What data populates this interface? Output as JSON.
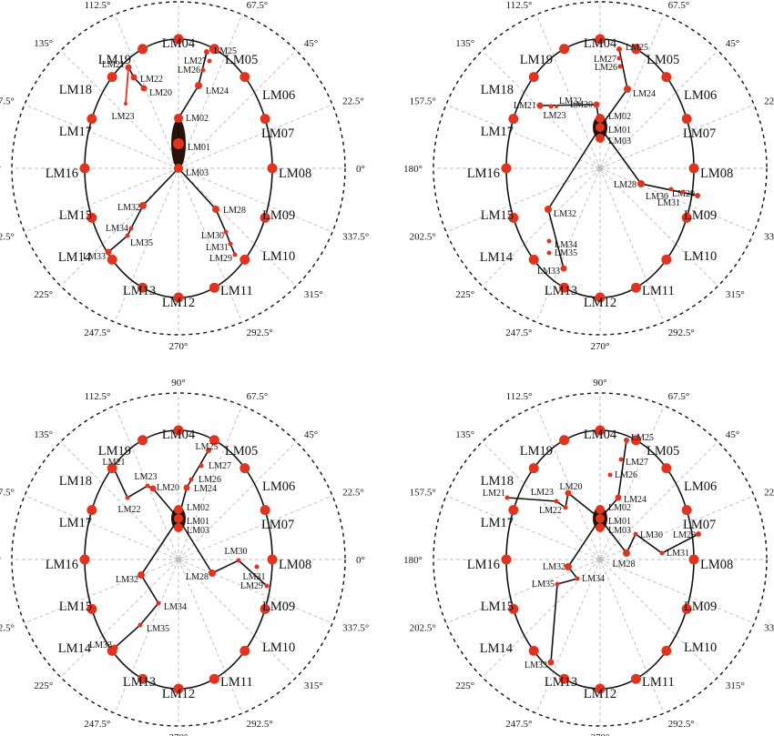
{
  "angle_labels": [
    "0°",
    "22.5°",
    "45°",
    "67.5°",
    "90°",
    "112.5°",
    "135°",
    "157.5°",
    "180°",
    "202.5°",
    "225°",
    "247.5°",
    "270°",
    "292.5°",
    "315°",
    "337.5°"
  ],
  "outer_labels": [
    "LM08",
    "LM07",
    "LM06",
    "LM05",
    "LM04",
    "LM19",
    "LM18",
    "LM17",
    "LM16",
    "LM15",
    "LM14",
    "LM13",
    "LM12",
    "LM11",
    "LM10",
    "LM09"
  ],
  "colors": {
    "node": "#e1341e",
    "line": "#111111",
    "grid": "#bbbbbb",
    "core": "#2a1208",
    "ring": "#111111"
  },
  "panels": [
    {
      "id": "top-left",
      "inner_labels": [
        "LM01",
        "LM02",
        "LM03",
        "LM20",
        "LM21",
        "LM22",
        "LM23",
        "LM24",
        "LM25",
        "LM26",
        "LM27",
        "LM28",
        "LM29",
        "LM30",
        "LM31",
        "LM32",
        "LM33",
        "LM34",
        "LM35"
      ],
      "red_segment": [
        "LM23",
        "LM21"
      ]
    },
    {
      "id": "top-right",
      "inner_labels": [
        "LM01",
        "LM02",
        "LM03",
        "LM20",
        "LM21",
        "LM22",
        "LM23",
        "LM24",
        "LM25",
        "LM26",
        "LM27",
        "LM28",
        "LM29",
        "LM30",
        "LM31",
        "LM32",
        "LM33",
        "LM34",
        "LM35"
      ]
    },
    {
      "id": "bottom-left",
      "inner_labels": [
        "LM01",
        "LM02",
        "LM03",
        "LM20",
        "LM21",
        "LM22",
        "LM23",
        "LM24",
        "LM25",
        "LM26",
        "LM27",
        "LM28",
        "LM29",
        "LM30",
        "LM31",
        "LM32",
        "LM33",
        "LM34",
        "LM35"
      ]
    },
    {
      "id": "bottom-right",
      "inner_labels": [
        "LM01",
        "LM02",
        "LM03",
        "LM20",
        "LM21",
        "LM22",
        "LM23",
        "LM24",
        "LM25",
        "LM26",
        "LM27",
        "LM28",
        "LM29",
        "LM30",
        "LM31",
        "LM32",
        "LM33",
        "LM34",
        "LM35"
      ]
    }
  ]
}
